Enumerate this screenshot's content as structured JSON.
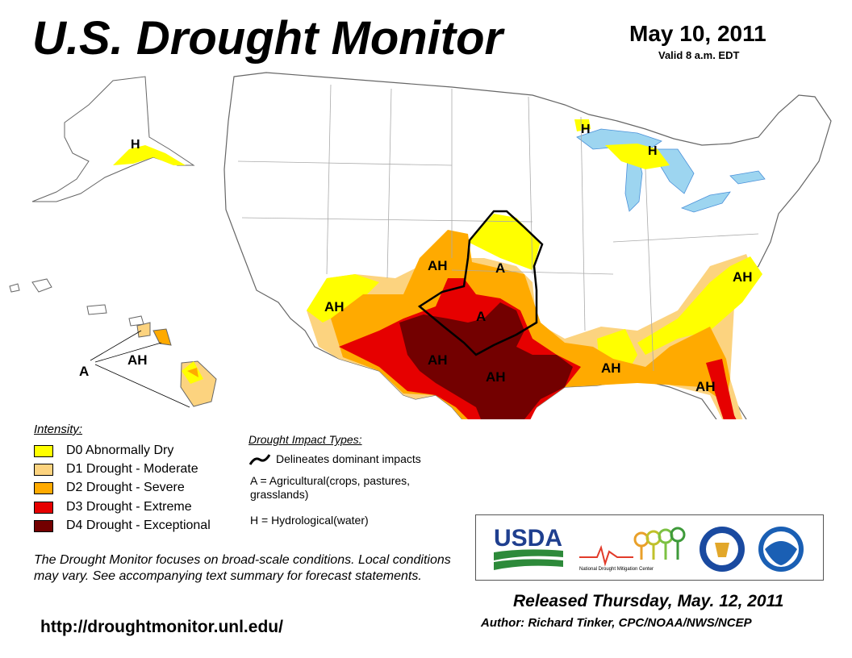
{
  "header": {
    "title": "U.S. Drought Monitor",
    "date": "May 10, 2011",
    "valid": "Valid 8 a.m. EDT"
  },
  "map_labels": {
    "ah_southwest": "AH",
    "ah_kansas": "AH",
    "a_kansas": "A",
    "a_oklahoma": "A",
    "ah_west_texas": "AH",
    "ah_central_texas": "AH",
    "ah_louisiana": "AH",
    "ah_carolina": "AH",
    "ah_georgia": "AH",
    "h_michigan_up": "H",
    "h_michigan_lp": "H",
    "h_alaska": "H",
    "ah_hawaii": "AH",
    "a_hawaii": "A"
  },
  "legend": {
    "title": "Intensity:",
    "items": [
      {
        "label": "D0 Abnormally Dry",
        "color": "#ffff00"
      },
      {
        "label": "D1 Drought - Moderate",
        "color": "#fcd37f"
      },
      {
        "label": "D2 Drought - Severe",
        "color": "#ffaa00"
      },
      {
        "label": "D3 Drought - Extreme",
        "color": "#e60000"
      },
      {
        "label": "D4 Drought - Exceptional",
        "color": "#730000"
      }
    ]
  },
  "impacts": {
    "title": "Drought Impact Types:",
    "delineates": "Delineates dominant impacts",
    "agricultural": "A = Agricultural(crops, pastures, grasslands)",
    "hydrological": "H = Hydrological(water)"
  },
  "disclaimer": "The Drought Monitor focuses on broad-scale conditions. Local conditions may vary. See accompanying text summary for forecast statements.",
  "url": "http://droughtmonitor.unl.edu/",
  "logos": {
    "usda": "USDA",
    "ndmc": "National Drought Mitigation Center"
  },
  "footer": {
    "released": "Released Thursday, May. 12, 2011",
    "author": "Author: Richard Tinker, CPC/NOAA/NWS/NCEP"
  },
  "colors": {
    "water": "#9dd5f0",
    "state_border": "#aaaaaa",
    "river": "#4a90d9",
    "impact_line": "#000000"
  }
}
